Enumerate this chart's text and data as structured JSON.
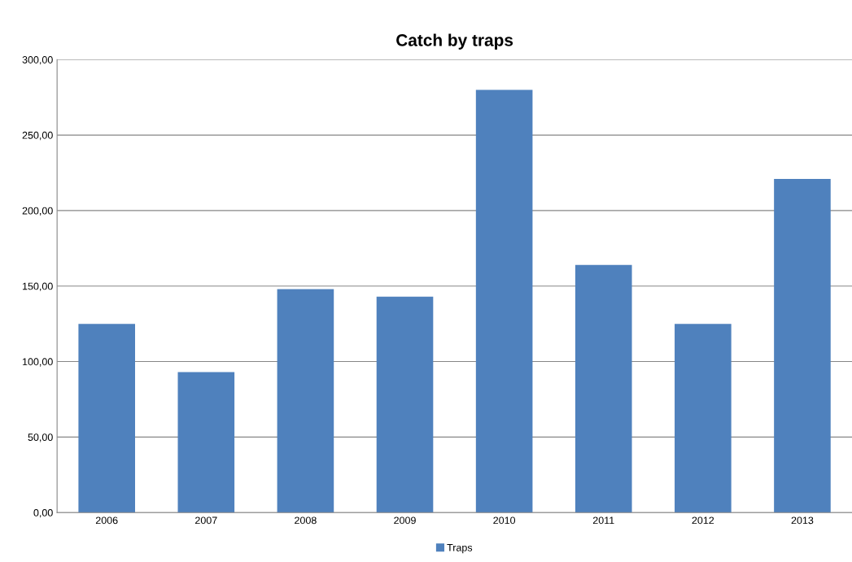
{
  "chart_data": {
    "type": "bar",
    "title": "Catch by traps",
    "categories": [
      "2006",
      "2007",
      "2008",
      "2009",
      "2010",
      "2011",
      "2012",
      "2013"
    ],
    "series": [
      {
        "name": "Traps",
        "color": "#4f81bd",
        "values": [
          125,
          93,
          148,
          143,
          280,
          164,
          125,
          221
        ]
      }
    ],
    "ylim": [
      0,
      300
    ],
    "yticks": [
      {
        "value": 0,
        "label": "0,00"
      },
      {
        "value": 50,
        "label": "50,00"
      },
      {
        "value": 100,
        "label": "100,00"
      },
      {
        "value": 150,
        "label": "150,00"
      },
      {
        "value": 200,
        "label": "200,00"
      },
      {
        "value": 250,
        "label": "250,00"
      },
      {
        "value": 300,
        "label": "300,00"
      }
    ],
    "grid": "y",
    "legend": "bottom"
  }
}
